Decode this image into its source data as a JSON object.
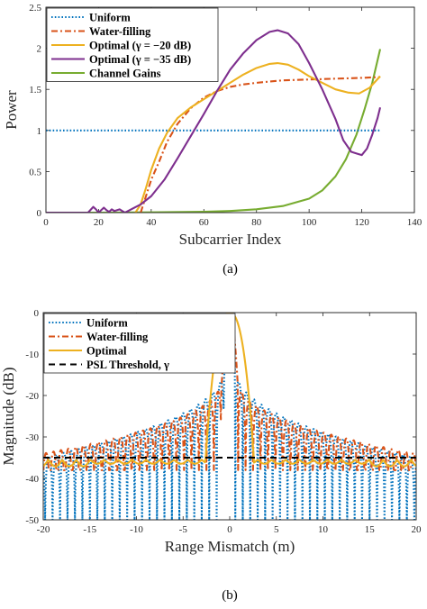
{
  "chart_data": [
    {
      "type": "line",
      "caption": "(a)",
      "xlabel": "Subcarrier Index",
      "ylabel": "Power",
      "xlim": [
        0,
        140
      ],
      "ylim": [
        0,
        2.5
      ],
      "xticks": [
        "0",
        "20",
        "40",
        "60",
        "80",
        "100",
        "120",
        "140"
      ],
      "yticks": [
        "0",
        "0.5",
        "1",
        "1.5",
        "2",
        "2.5"
      ],
      "legend_position": "top-left",
      "series": [
        {
          "name": "Uniform",
          "color": "#0072BD",
          "style": "dotted",
          "x": [
            0,
            127
          ],
          "y": [
            1,
            1
          ]
        },
        {
          "name": "Water-filling",
          "color": "#D95319",
          "style": "dashdot",
          "x": [
            36,
            38,
            40,
            43,
            46,
            50,
            55,
            60,
            65,
            70,
            75,
            80,
            90,
            100,
            110,
            120,
            127
          ],
          "y": [
            0,
            0.2,
            0.4,
            0.62,
            0.86,
            1.08,
            1.27,
            1.4,
            1.48,
            1.53,
            1.56,
            1.58,
            1.61,
            1.62,
            1.63,
            1.64,
            1.65
          ]
        },
        {
          "name": "Optimal (γ = −20 dB)",
          "color": "#EDB120",
          "style": "solid",
          "x": [
            34,
            36,
            38,
            40,
            43,
            46,
            50,
            55,
            60,
            65,
            70,
            75,
            80,
            85,
            88,
            92,
            96,
            100,
            105,
            110,
            115,
            119,
            123,
            127
          ],
          "y": [
            0,
            0.1,
            0.3,
            0.52,
            0.78,
            0.97,
            1.15,
            1.28,
            1.38,
            1.48,
            1.58,
            1.68,
            1.76,
            1.81,
            1.82,
            1.8,
            1.74,
            1.66,
            1.58,
            1.5,
            1.46,
            1.45,
            1.52,
            1.66
          ]
        },
        {
          "name": "Optimal (γ = −35 dB)",
          "color": "#7E2F8E",
          "style": "solid",
          "x": [
            0,
            16,
            18,
            19,
            20,
            21,
            22,
            23,
            24,
            25,
            26,
            28,
            30,
            33,
            36,
            40,
            45,
            50,
            55,
            60,
            65,
            70,
            75,
            80,
            85,
            88,
            92,
            96,
            100,
            105,
            110,
            113,
            116,
            118,
            120,
            122,
            124,
            126,
            127
          ],
          "y": [
            0,
            0,
            0.07,
            0.04,
            0.0,
            0.03,
            0.06,
            0.03,
            0.01,
            0.04,
            0.02,
            0.04,
            0.0,
            0.05,
            0.1,
            0.2,
            0.4,
            0.66,
            0.93,
            1.2,
            1.48,
            1.74,
            1.94,
            2.1,
            2.2,
            2.22,
            2.18,
            2.05,
            1.82,
            1.5,
            1.14,
            0.88,
            0.74,
            0.72,
            0.7,
            0.78,
            0.95,
            1.15,
            1.28
          ]
        },
        {
          "name": "Channel Gains",
          "color": "#77AC30",
          "style": "solid",
          "x": [
            0,
            20,
            40,
            60,
            70,
            80,
            90,
            100,
            105,
            110,
            114,
            118,
            121,
            124,
            127
          ],
          "y": [
            0,
            0,
            0.003,
            0.01,
            0.02,
            0.04,
            0.08,
            0.17,
            0.27,
            0.44,
            0.65,
            0.95,
            1.25,
            1.58,
            1.99
          ]
        }
      ]
    },
    {
      "type": "line",
      "caption": "(b)",
      "xlabel": "Range Mismatch (m)",
      "ylabel": "Magnitude (dB)",
      "xlim": [
        -20,
        20
      ],
      "ylim": [
        -50,
        0
      ],
      "xticks": [
        "-20",
        "-15",
        "-10",
        "-5",
        "0",
        "5",
        "10",
        "15",
        "20"
      ],
      "yticks": [
        "0",
        "-10",
        "-20",
        "-30",
        "-40",
        "-50"
      ],
      "legend_position": "top-left",
      "series": [
        {
          "name": "Uniform",
          "color": "#0072BD",
          "style": "dotted",
          "pattern": "sinc sidelobes with deep nulls",
          "mainlobe_half_width": 0.6,
          "null_spacing": 0.8,
          "first_sidelobe": -13,
          "far_sidelobe": -35,
          "null_depth": -50
        },
        {
          "name": "Water-filling",
          "color": "#D95319",
          "style": "dashdot",
          "pattern": "sidelobes with moderate nulls",
          "mainlobe_half_width": 0.9,
          "null_spacing": 0.8,
          "first_sidelobe": -16,
          "far_sidelobe": -34,
          "null_depth": -38
        },
        {
          "name": "Optimal",
          "color": "#EDB120",
          "style": "solid",
          "pattern": "wide mainlobe then floor",
          "mainlobe_half_width": 2.6,
          "floor": -35.5
        },
        {
          "name": "PSL Threshold, γ",
          "color": "#000000",
          "style": "dashed",
          "x": [
            -20,
            20
          ],
          "y": [
            -35,
            -35
          ]
        }
      ]
    }
  ]
}
